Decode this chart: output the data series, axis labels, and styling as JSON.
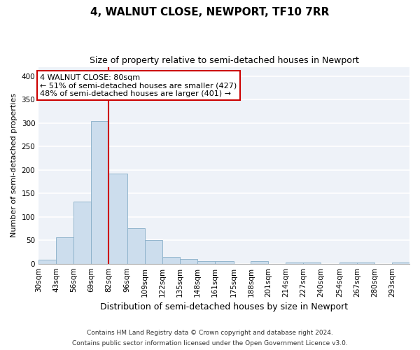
{
  "title": "4, WALNUT CLOSE, NEWPORT, TF10 7RR",
  "subtitle": "Size of property relative to semi-detached houses in Newport",
  "xlabel": "Distribution of semi-detached houses by size in Newport",
  "ylabel": "Number of semi-detached properties",
  "footnote1": "Contains HM Land Registry data © Crown copyright and database right 2024.",
  "footnote2": "Contains public sector information licensed under the Open Government Licence v3.0.",
  "annotation_title": "4 WALNUT CLOSE: 80sqm",
  "annotation_line1": "← 51% of semi-detached houses are smaller (427)",
  "annotation_line2": "48% of semi-detached houses are larger (401) →",
  "bar_edge_positions": [
    30,
    43,
    56,
    69,
    82,
    96,
    109,
    122,
    135,
    148,
    161,
    175,
    188,
    201,
    214,
    227,
    240,
    254,
    267,
    280,
    293
  ],
  "bar_heights": [
    8,
    57,
    132,
    305,
    192,
    75,
    50,
    15,
    10,
    5,
    5,
    0,
    5,
    0,
    2,
    2,
    0,
    2,
    2,
    0,
    2
  ],
  "bar_color": "#ccdded",
  "bar_edge_color": "#88aec8",
  "redline_color": "#cc0000",
  "annotation_box_color": "#cc0000",
  "background_color": "#eef2f8",
  "ylim": [
    0,
    420
  ],
  "yticks": [
    0,
    50,
    100,
    150,
    200,
    250,
    300,
    350,
    400
  ],
  "grid_color": "#ffffff",
  "title_fontsize": 11,
  "subtitle_fontsize": 9,
  "xlabel_fontsize": 9,
  "ylabel_fontsize": 8,
  "tick_fontsize": 7.5,
  "annotation_fontsize": 8,
  "footnote_fontsize": 6.5
}
